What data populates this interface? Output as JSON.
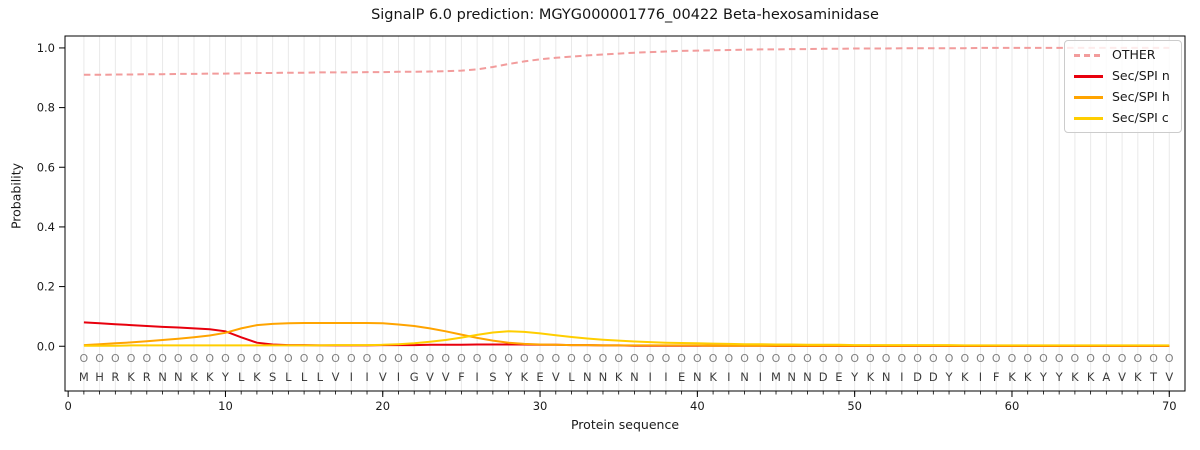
{
  "figure": {
    "title": "SignalP 6.0 prediction: MGYG000001776_00422 Beta-hexosaminidase",
    "xlabel": "Protein sequence",
    "ylabel": "Probability"
  },
  "legend": {
    "position": "upper-right",
    "items": [
      {
        "label": "OTHER"
      },
      {
        "label": "Sec/SPI n"
      },
      {
        "label": "Sec/SPI h"
      },
      {
        "label": "Sec/SPI c"
      }
    ]
  },
  "chart_data": {
    "type": "line",
    "title": "SignalP 6.0 prediction: MGYG000001776_00422 Beta-hexosaminidase",
    "xlabel": "Protein sequence",
    "ylabel": "Probability",
    "xlim": [
      -0.2,
      71
    ],
    "ylim": [
      -0.15,
      1.04
    ],
    "x_ticks": [
      0,
      10,
      20,
      30,
      40,
      50,
      60,
      70
    ],
    "y_ticks": [
      0.0,
      0.2,
      0.4,
      0.6,
      0.8,
      1.0
    ],
    "grid": "vertical-per-position",
    "grid_color": "#e9e9e9",
    "legend_position": "upper-right",
    "x": [
      1,
      2,
      3,
      4,
      5,
      6,
      7,
      8,
      9,
      10,
      11,
      12,
      13,
      14,
      15,
      16,
      17,
      18,
      19,
      20,
      21,
      22,
      23,
      24,
      25,
      26,
      27,
      28,
      29,
      30,
      31,
      32,
      33,
      34,
      35,
      36,
      37,
      38,
      39,
      40,
      41,
      42,
      43,
      44,
      45,
      46,
      47,
      48,
      49,
      50,
      51,
      52,
      53,
      54,
      55,
      56,
      57,
      58,
      59,
      60,
      61,
      62,
      63,
      64,
      65,
      66,
      67,
      68,
      69,
      70
    ],
    "sequence": [
      "M",
      "H",
      "R",
      "K",
      "R",
      "N",
      "N",
      "K",
      "K",
      "Y",
      "L",
      "K",
      "S",
      "L",
      "L",
      "L",
      "V",
      "I",
      "I",
      "V",
      "I",
      "G",
      "V",
      "V",
      "F",
      "I",
      "S",
      "Y",
      "K",
      "E",
      "V",
      "L",
      "N",
      "N",
      "K",
      "N",
      "I",
      "I",
      "E",
      "N",
      "K",
      "I",
      "N",
      "I",
      "M",
      "N",
      "N",
      "D",
      "E",
      "Y",
      "K",
      "N",
      "I",
      "D",
      "D",
      "Y",
      "K",
      "I",
      "F",
      "K",
      "K",
      "Y",
      "Y",
      "K",
      "K",
      "A",
      "V",
      "K",
      "T",
      "V"
    ],
    "position_labels": [
      "O",
      "O",
      "O",
      "O",
      "O",
      "O",
      "O",
      "O",
      "O",
      "O",
      "O",
      "O",
      "O",
      "O",
      "O",
      "O",
      "O",
      "O",
      "O",
      "O",
      "O",
      "O",
      "O",
      "O",
      "O",
      "O",
      "O",
      "O",
      "O",
      "O",
      "O",
      "O",
      "O",
      "O",
      "O",
      "O",
      "O",
      "O",
      "O",
      "O",
      "O",
      "O",
      "O",
      "O",
      "O",
      "O",
      "O",
      "O",
      "O",
      "O",
      "O",
      "O",
      "O",
      "O",
      "O",
      "O",
      "O",
      "O",
      "O",
      "O",
      "O",
      "O",
      "O",
      "O",
      "O",
      "O",
      "O",
      "O",
      "O",
      "O"
    ],
    "series": [
      {
        "name": "OTHER",
        "color": "#f29c9c",
        "style": "dashed",
        "values": [
          0.91,
          0.91,
          0.911,
          0.911,
          0.912,
          0.912,
          0.913,
          0.913,
          0.914,
          0.914,
          0.915,
          0.916,
          0.916,
          0.917,
          0.917,
          0.918,
          0.918,
          0.918,
          0.919,
          0.919,
          0.92,
          0.92,
          0.921,
          0.922,
          0.924,
          0.928,
          0.936,
          0.946,
          0.955,
          0.962,
          0.967,
          0.971,
          0.975,
          0.978,
          0.981,
          0.984,
          0.986,
          0.988,
          0.99,
          0.991,
          0.992,
          0.993,
          0.994,
          0.995,
          0.995,
          0.996,
          0.996,
          0.997,
          0.997,
          0.998,
          0.998,
          0.998,
          0.999,
          0.999,
          0.999,
          0.999,
          0.999,
          1.0,
          1.0,
          1.0,
          1.0,
          1.0,
          1.0,
          1.0,
          1.0,
          1.0,
          1.0,
          1.0,
          1.0,
          1.0
        ]
      },
      {
        "name": "Sec/SPI n",
        "color": "#e8000d",
        "style": "solid",
        "values": [
          0.08,
          0.077,
          0.074,
          0.071,
          0.068,
          0.065,
          0.063,
          0.06,
          0.057,
          0.05,
          0.03,
          0.012,
          0.006,
          0.004,
          0.004,
          0.003,
          0.003,
          0.003,
          0.003,
          0.004,
          0.004,
          0.004,
          0.005,
          0.005,
          0.005,
          0.006,
          0.006,
          0.006,
          0.006,
          0.005,
          0.005,
          0.004,
          0.004,
          0.003,
          0.003,
          0.002,
          0.002,
          0.002,
          0.002,
          0.002,
          0.002,
          0.002,
          0.002,
          0.002,
          0.001,
          0.001,
          0.001,
          0.001,
          0.001,
          0.001,
          0.001,
          0.001,
          0.001,
          0.001,
          0.001,
          0.001,
          0.001,
          0.001,
          0.001,
          0.001,
          0.001,
          0.001,
          0.001,
          0.001,
          0.001,
          0.001,
          0.001,
          0.001,
          0.001,
          0.001
        ]
      },
      {
        "name": "Sec/SPI h",
        "color": "#ffa400",
        "style": "solid",
        "values": [
          0.004,
          0.007,
          0.01,
          0.013,
          0.017,
          0.021,
          0.025,
          0.03,
          0.036,
          0.045,
          0.06,
          0.071,
          0.075,
          0.077,
          0.078,
          0.078,
          0.078,
          0.078,
          0.078,
          0.077,
          0.073,
          0.068,
          0.06,
          0.05,
          0.039,
          0.028,
          0.019,
          0.012,
          0.008,
          0.006,
          0.005,
          0.004,
          0.004,
          0.003,
          0.003,
          0.003,
          0.003,
          0.003,
          0.003,
          0.003,
          0.002,
          0.002,
          0.002,
          0.002,
          0.002,
          0.002,
          0.002,
          0.002,
          0.002,
          0.002,
          0.002,
          0.002,
          0.002,
          0.002,
          0.002,
          0.002,
          0.002,
          0.002,
          0.002,
          0.002,
          0.002,
          0.002,
          0.002,
          0.002,
          0.002,
          0.002,
          0.002,
          0.002,
          0.002,
          0.002
        ]
      },
      {
        "name": "Sec/SPI c",
        "color": "#ffce00",
        "style": "solid",
        "values": [
          0.002,
          0.002,
          0.002,
          0.003,
          0.003,
          0.003,
          0.003,
          0.003,
          0.003,
          0.003,
          0.003,
          0.003,
          0.003,
          0.003,
          0.003,
          0.003,
          0.004,
          0.004,
          0.004,
          0.005,
          0.007,
          0.01,
          0.015,
          0.021,
          0.029,
          0.038,
          0.046,
          0.05,
          0.048,
          0.043,
          0.037,
          0.031,
          0.026,
          0.022,
          0.019,
          0.016,
          0.014,
          0.012,
          0.011,
          0.01,
          0.009,
          0.008,
          0.007,
          0.007,
          0.006,
          0.006,
          0.005,
          0.005,
          0.005,
          0.004,
          0.004,
          0.004,
          0.004,
          0.004,
          0.004,
          0.004,
          0.003,
          0.003,
          0.003,
          0.003,
          0.003,
          0.003,
          0.003,
          0.003,
          0.003,
          0.003,
          0.003,
          0.003,
          0.003,
          0.003
        ]
      }
    ]
  }
}
